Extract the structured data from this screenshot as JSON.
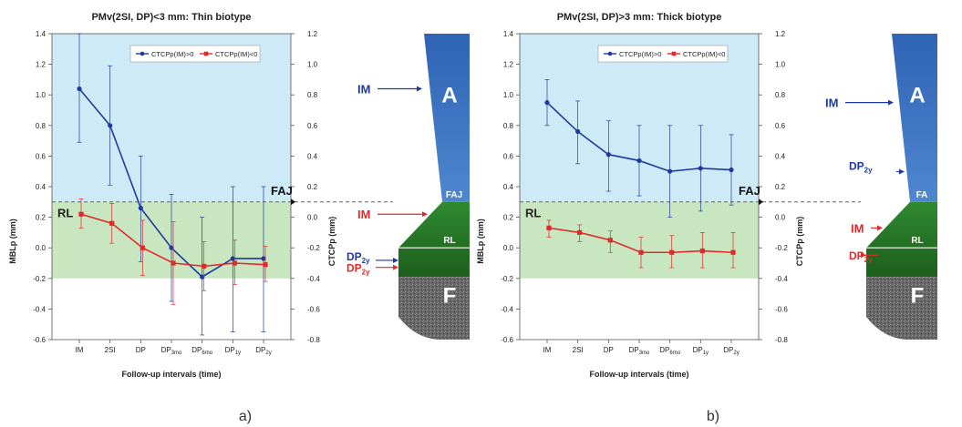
{
  "chart_data": [
    {
      "type": "line",
      "panel_label": "a)",
      "title": "PMv(2SI, DP)<3 mm: Thin biotype",
      "xlabel": "Follow-up intervals (time)",
      "ylabel": "MBLp (mm)",
      "ylabel_right": "CTCPp (mm)",
      "categories": [
        "IM",
        "2SI",
        "DP",
        "DP3mo",
        "DP6mo",
        "DP1y",
        "DP2y"
      ],
      "ylim": [
        -0.6,
        1.4
      ],
      "yticks": [
        "1.4",
        "1.2",
        "1.0",
        "0.8",
        "0.6",
        "0.4",
        "0.2",
        "0.0",
        "-0.2",
        "-0.4",
        "-0.6"
      ],
      "ylim_right": [
        -0.8,
        1.2
      ],
      "yticks_right": [
        "1.2",
        "1.0",
        "0.8",
        "0.6",
        "0.4",
        "0.2",
        "0.0",
        "-0.2",
        "-0.4",
        "-0.6",
        "-0.8"
      ],
      "grid": false,
      "legend_position": "top-center",
      "series": [
        {
          "name": "CTCPp(IM)>0",
          "color": "#1f3a9e",
          "marker": "circle",
          "values": [
            1.04,
            0.8,
            0.26,
            0.0,
            -0.19,
            -0.07,
            -0.07
          ],
          "err_low": [
            0.69,
            0.41,
            -0.09,
            -0.35,
            -0.57,
            -0.55,
            -0.55
          ],
          "err_high": [
            1.4,
            1.19,
            0.6,
            0.35,
            0.2,
            0.4,
            0.4
          ]
        },
        {
          "name": "CTCPp(IM)<0",
          "color": "#e02a2a",
          "marker": "square",
          "values": [
            0.22,
            0.16,
            0.0,
            -0.1,
            -0.12,
            -0.1,
            -0.11
          ],
          "err_low": [
            0.13,
            0.03,
            -0.18,
            -0.37,
            -0.28,
            -0.24,
            -0.22
          ],
          "err_high": [
            0.32,
            0.29,
            0.18,
            0.17,
            0.04,
            0.05,
            0.01
          ]
        }
      ],
      "bands": {
        "upper_color": "#cfeaf7",
        "lower_color": "#c8e6bf",
        "upper_range": [
          0.3,
          1.5
        ],
        "lower_range": [
          -0.2,
          0.3
        ]
      },
      "reference_line": {
        "value": 0.3,
        "style": "dashed"
      },
      "annotations": {
        "rl": "RL",
        "faj": "FAJ",
        "im_blue": "IM",
        "im_red": "IM",
        "dp_blue": "DP",
        "dp_red": "DP",
        "sub_2y": "2y",
        "block_a": "A",
        "block_rl": "RL",
        "block_faj": "FAJ",
        "block_f": "F"
      }
    },
    {
      "type": "line",
      "panel_label": "b)",
      "title": "PMv(2SI, DP)>3 mm: Thick biotype",
      "xlabel": "Follow-up intervals (time)",
      "ylabel": "MBLp (mm)",
      "ylabel_right": "CTCPp (mm)",
      "categories": [
        "IM",
        "2SI",
        "DP",
        "DP3mo",
        "DP6mo",
        "DP1y",
        "DP2y"
      ],
      "ylim": [
        -0.6,
        1.4
      ],
      "yticks": [
        "1.4",
        "1.2",
        "1.0",
        "0.8",
        "0.6",
        "0.4",
        "0.2",
        "0.0",
        "-0.2",
        "-0.4",
        "-0.6"
      ],
      "ylim_right": [
        -0.8,
        1.2
      ],
      "yticks_right": [
        "1.2",
        "1.0",
        "0.8",
        "0.6",
        "0.4",
        "0.2",
        "0.0",
        "-0.2",
        "-0.4",
        "-0.6",
        "-0.8"
      ],
      "grid": false,
      "legend_position": "top-center",
      "series": [
        {
          "name": "CTCPp(IM)>0",
          "color": "#1f3a9e",
          "marker": "circle",
          "values": [
            0.95,
            0.76,
            0.61,
            0.57,
            0.5,
            0.52,
            0.51
          ],
          "err_low": [
            0.8,
            0.55,
            0.37,
            0.34,
            0.2,
            0.24,
            0.28
          ],
          "err_high": [
            1.1,
            0.96,
            0.83,
            0.8,
            0.8,
            0.8,
            0.74
          ]
        },
        {
          "name": "CTCPp(IM)<0",
          "color": "#e02a2a",
          "marker": "square",
          "values": [
            0.13,
            0.1,
            0.05,
            -0.03,
            -0.03,
            -0.02,
            -0.03
          ],
          "err_low": [
            0.07,
            0.04,
            -0.03,
            -0.13,
            -0.13,
            -0.13,
            -0.13
          ],
          "err_high": [
            0.18,
            0.15,
            0.11,
            0.07,
            0.08,
            0.1,
            0.1
          ]
        }
      ],
      "bands": {
        "upper_color": "#cfeaf7",
        "lower_color": "#c8e6bf",
        "upper_range": [
          0.3,
          1.5
        ],
        "lower_range": [
          -0.2,
          0.3
        ]
      },
      "reference_line": {
        "value": 0.3,
        "style": "dashed"
      },
      "annotations": {
        "rl": "RL",
        "faj": "FAJ",
        "im_blue": "IM",
        "im_red": "IM",
        "dp_blue": "DP",
        "dp_red": "DP",
        "sub_2y": "2y",
        "block_a": "A",
        "block_rl": "RL",
        "block_faj": "FA",
        "block_f": "F"
      }
    }
  ]
}
